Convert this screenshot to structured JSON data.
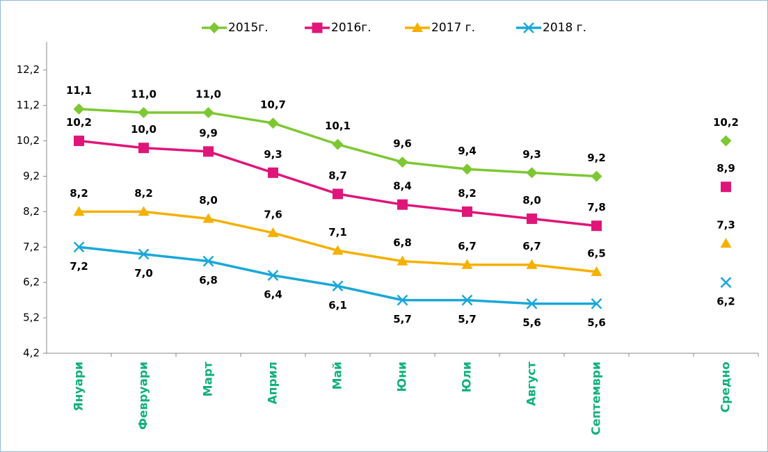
{
  "chart_data": {
    "type": "line",
    "categories": [
      "Януари",
      "Февруари",
      "Март",
      "Април",
      "Май",
      "Юни",
      "Юли",
      "Август",
      "Септември",
      null,
      "Средно"
    ],
    "series": [
      {
        "name": "2015г.",
        "color": "#7dc832",
        "marker": "diamond",
        "values": [
          11.1,
          11.0,
          11.0,
          10.7,
          10.1,
          9.6,
          9.4,
          9.3,
          9.2,
          null,
          10.2
        ],
        "value_labels": [
          "11,1",
          "11,0",
          "11,0",
          "10,7",
          "10,1",
          "9,6",
          "9,4",
          "9,3",
          "9,2",
          null,
          "10,2"
        ]
      },
      {
        "name": "2016г.",
        "color": "#e0157a",
        "marker": "square",
        "values": [
          10.2,
          10.0,
          9.9,
          9.3,
          8.7,
          8.4,
          8.2,
          8.0,
          7.8,
          null,
          8.9
        ],
        "value_labels": [
          "10,2",
          "10,0",
          "9,9",
          "9,3",
          "8,7",
          "8,4",
          "8,2",
          "8,0",
          "7,8",
          null,
          "8,9"
        ]
      },
      {
        "name": "2017 г.",
        "color": "#f5b000",
        "marker": "triangle",
        "values": [
          8.2,
          8.2,
          8.0,
          7.6,
          7.1,
          6.8,
          6.7,
          6.7,
          6.5,
          null,
          7.3
        ],
        "value_labels": [
          "8,2",
          "8,2",
          "8,0",
          "7,6",
          "7,1",
          "6,8",
          "6,7",
          "6,7",
          "6,5",
          null,
          "7,3"
        ]
      },
      {
        "name": "2018 г.",
        "color": "#1aa7d9",
        "marker": "x",
        "values": [
          7.2,
          7.0,
          6.8,
          6.4,
          6.1,
          5.7,
          5.7,
          5.6,
          5.6,
          null,
          6.2
        ],
        "value_labels": [
          "7,2",
          "7,0",
          "6,8",
          "6,4",
          "6,1",
          "5,7",
          "5,7",
          "5,6",
          "5,6",
          null,
          "6,2"
        ]
      }
    ],
    "ylim": [
      4.2,
      13.0
    ],
    "yticks": [
      {
        "value": 4.2,
        "label": "4,2"
      },
      {
        "value": 5.2,
        "label": "5,2"
      },
      {
        "value": 6.2,
        "label": "6,2"
      },
      {
        "value": 7.2,
        "label": "7,2"
      },
      {
        "value": 8.2,
        "label": "8,2"
      },
      {
        "value": 9.2,
        "label": "9,2"
      },
      {
        "value": 10.2,
        "label": "10,2"
      },
      {
        "value": 11.2,
        "label": "11,2"
      },
      {
        "value": 12.2,
        "label": "12,2"
      }
    ],
    "grid": false,
    "legend": "top"
  }
}
